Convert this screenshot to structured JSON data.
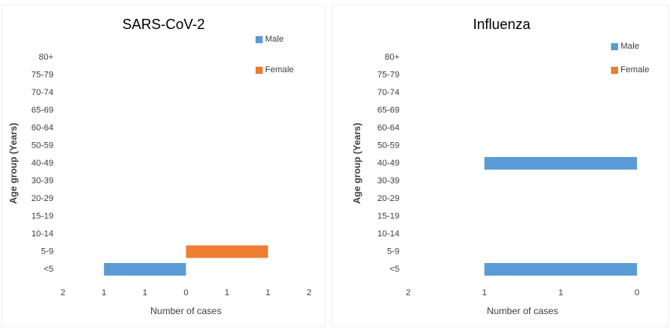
{
  "chart_data": [
    {
      "type": "bar",
      "title": "SARS-CoV-2",
      "xlabel": "Number of cases",
      "ylabel": "Age group (Years)",
      "categories": [
        "<5",
        "5-9",
        "10-14",
        "15-19",
        "20-29",
        "30-39",
        "40-49",
        "50-59",
        "60-64",
        "65-69",
        "70-74",
        "75-79",
        "80+"
      ],
      "series": [
        {
          "name": "Male",
          "color": "#5b9bd5",
          "values": [
            -1,
            0,
            0,
            0,
            0,
            0,
            0,
            0,
            0,
            0,
            0,
            0,
            0
          ]
        },
        {
          "name": "Female",
          "color": "#ed7d31",
          "values": [
            0,
            1,
            0,
            0,
            0,
            0,
            0,
            0,
            0,
            0,
            0,
            0,
            0
          ]
        }
      ],
      "xlim": [
        -1.5,
        1.5
      ],
      "xticks": [
        {
          "value": -1.5,
          "label": "2"
        },
        {
          "value": -1,
          "label": "1"
        },
        {
          "value": -0.5,
          "label": "1"
        },
        0,
        {
          "value": 0.5,
          "label": "1"
        },
        1,
        {
          "value": 1.5,
          "label": "2"
        }
      ],
      "legend": "upper right"
    },
    {
      "type": "bar",
      "title": "Influenza",
      "xlabel": "Number of cases",
      "ylabel": "Age group (Years)",
      "categories": [
        "<5",
        "5-9",
        "10-14",
        "15-19",
        "20-29",
        "30-39",
        "40-49",
        "50-59",
        "60-64",
        "65-69",
        "70-74",
        "75-79",
        "80+"
      ],
      "series": [
        {
          "name": "Male",
          "color": "#5b9bd5",
          "values": [
            -1,
            0,
            0,
            0,
            0,
            0,
            -1,
            0,
            0,
            0,
            0,
            0,
            0
          ]
        },
        {
          "name": "Female",
          "color": "#ed7d31",
          "values": [
            0,
            0,
            0,
            0,
            0,
            0,
            0,
            0,
            0,
            0,
            0,
            0,
            0
          ]
        }
      ],
      "xlim": [
        -1.5,
        0
      ],
      "xticks": [
        {
          "value": -1.5,
          "label": "2"
        },
        {
          "value": -1,
          "label": "1"
        },
        {
          "value": -0.5,
          "label": "1"
        },
        0
      ],
      "legend": "upper right"
    }
  ]
}
